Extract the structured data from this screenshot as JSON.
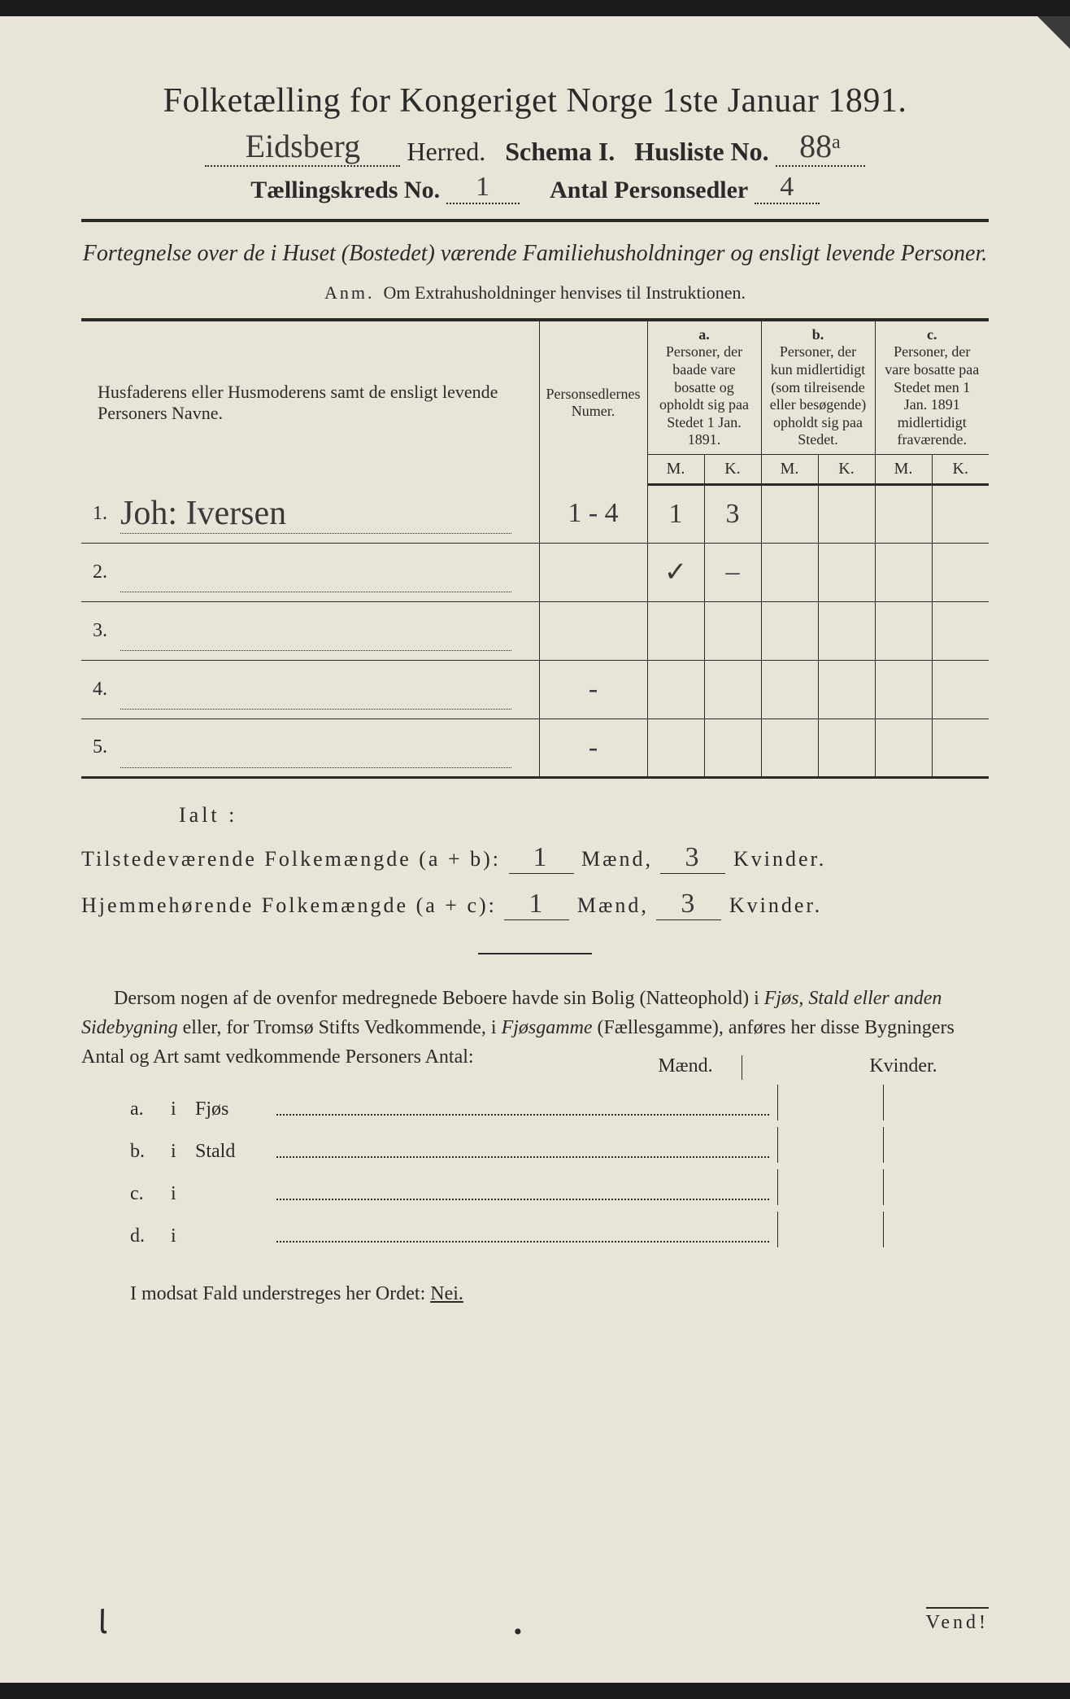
{
  "header": {
    "title": "Folketælling for Kongeriget Norge 1ste Januar 1891.",
    "herred_value": "Eidsberg",
    "herred_label": "Herred.",
    "schema_label": "Schema I.",
    "husliste_label": "Husliste No.",
    "husliste_value": "88ᵃ",
    "kreds_label": "Tællingskreds No.",
    "kreds_value": "1",
    "antal_label": "Antal Personsedler",
    "antal_value": "4"
  },
  "subtitle": "Fortegnelse over de i Huset (Bostedet) værende Familiehusholdninger og ensligt levende Personer.",
  "anm": {
    "label": "Anm.",
    "text": "Om Extrahusholdninger henvises til Instruktionen."
  },
  "table": {
    "col_name": "Husfaderens eller Husmoderens samt de ensligt levende Personers Navne.",
    "col_num": "Personsedlernes Numer.",
    "col_a_label": "a.",
    "col_a": "Personer, der baade vare bosatte og opholdt sig paa Stedet 1 Jan. 1891.",
    "col_b_label": "b.",
    "col_b": "Personer, der kun midlertidigt (som tilreisende eller besøgende) opholdt sig paa Stedet.",
    "col_c_label": "c.",
    "col_c": "Personer, der vare bosatte paa Stedet men 1 Jan. 1891 midlertidigt fraværende.",
    "m": "M.",
    "k": "K.",
    "rows": [
      {
        "n": "1.",
        "name": "Joh: Iversen",
        "num": "1 - 4",
        "a_m": "1",
        "a_k": "3",
        "b_m": "",
        "b_k": "",
        "c_m": "",
        "c_k": ""
      },
      {
        "n": "2.",
        "name": "",
        "num": "",
        "a_m": "✓",
        "a_k": "–",
        "b_m": "",
        "b_k": "",
        "c_m": "",
        "c_k": ""
      },
      {
        "n": "3.",
        "name": "",
        "num": "",
        "a_m": "",
        "a_k": "",
        "b_m": "",
        "b_k": "",
        "c_m": "",
        "c_k": ""
      },
      {
        "n": "4.",
        "name": "",
        "num": "-",
        "a_m": "",
        "a_k": "",
        "b_m": "",
        "b_k": "",
        "c_m": "",
        "c_k": ""
      },
      {
        "n": "5.",
        "name": "",
        "num": "-",
        "a_m": "",
        "a_k": "",
        "b_m": "",
        "b_k": "",
        "c_m": "",
        "c_k": ""
      }
    ]
  },
  "totals": {
    "ialt": "Ialt :",
    "line1_label": "Tilstedeværende Folkemængde (a + b):",
    "line2_label": "Hjemmehørende Folkemængde (a + c):",
    "maend": "Mænd,",
    "kvinder": "Kvinder.",
    "l1_m": "1",
    "l1_k": "3",
    "l2_m": "1",
    "l2_k": "3"
  },
  "para": {
    "text1": "Dersom nogen af de ovenfor medregnede Beboere havde sin Bolig (Natteophold) i ",
    "it1": "Fjøs, Stald eller anden Sidebygning",
    "text2": " eller, for Tromsø Stifts Vedkommende, i ",
    "it2": "Fjøsgamme",
    "text3": " (Fællesgamme), anføres her disse Bygningers Antal og Art samt vedkommende Personers Antal:"
  },
  "abcd": {
    "maend": "Mænd.",
    "kvinder": "Kvinder.",
    "rows": [
      {
        "lbl": "a.",
        "i": "i",
        "type": "Fjøs"
      },
      {
        "lbl": "b.",
        "i": "i",
        "type": "Stald"
      },
      {
        "lbl": "c.",
        "i": "i",
        "type": ""
      },
      {
        "lbl": "d.",
        "i": "i",
        "type": ""
      }
    ]
  },
  "modsat": {
    "text": "I modsat Fald understreges her Ordet: ",
    "nei": "Nei."
  },
  "vend": "Vend!",
  "colors": {
    "paper": "#e8e4d8",
    "ink": "#2a2a2a",
    "bg": "#1a1a1a"
  }
}
